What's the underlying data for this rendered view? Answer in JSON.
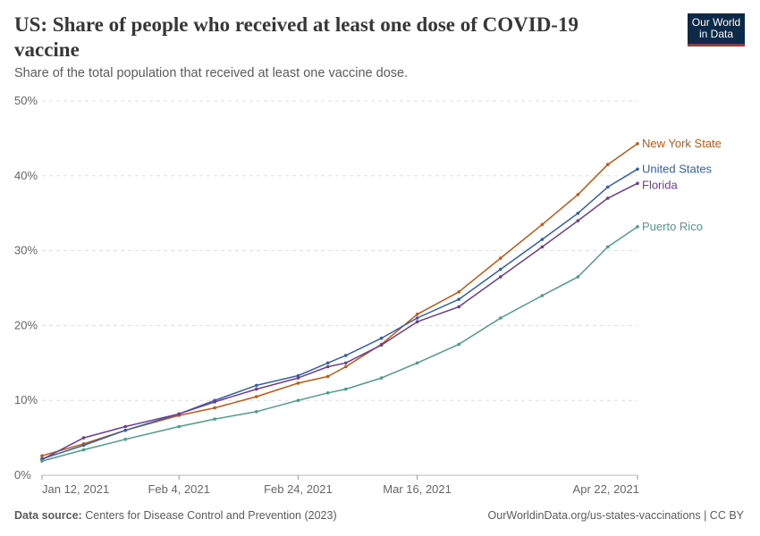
{
  "header": {
    "title": "US: Share of people who received at least one dose of COVID-19 vaccine",
    "subtitle": "Share of the total population that received at least one vaccine dose."
  },
  "logo": {
    "line1": "Our World",
    "line2": "in Data"
  },
  "footer": {
    "source_label": "Data source:",
    "source_text": "Centers for Disease Control and Prevention (2023)",
    "url_license": "OurWorldinData.org/us-states-vaccinations | CC BY"
  },
  "chart_data": {
    "type": "line",
    "x_start": "2021-01-12",
    "x_end": "2021-04-22",
    "ylim": [
      0,
      50
    ],
    "y_ticks": [
      {
        "value": 0,
        "label": "0%"
      },
      {
        "value": 10,
        "label": "10%"
      },
      {
        "value": 20,
        "label": "20%"
      },
      {
        "value": 30,
        "label": "30%"
      },
      {
        "value": 40,
        "label": "40%"
      },
      {
        "value": 50,
        "label": "50%"
      }
    ],
    "x_ticks": [
      {
        "date": "2021-01-12",
        "label": "Jan 12, 2021"
      },
      {
        "date": "2021-02-04",
        "label": "Feb 4, 2021"
      },
      {
        "date": "2021-02-24",
        "label": "Feb 24, 2021"
      },
      {
        "date": "2021-03-16",
        "label": "Mar 16, 2021"
      },
      {
        "date": "2021-04-22",
        "label": "Apr 22, 2021"
      }
    ],
    "grid": "horizontal dashed",
    "legend": "inline labels at right end of lines",
    "series": [
      {
        "name": "New York State",
        "color": "#c05917",
        "points": [
          [
            "2021-01-12",
            2.6
          ],
          [
            "2021-01-19",
            4.2
          ],
          [
            "2021-01-26",
            6.0
          ],
          [
            "2021-02-04",
            8.0
          ],
          [
            "2021-02-10",
            9.0
          ],
          [
            "2021-02-17",
            10.5
          ],
          [
            "2021-02-24",
            12.3
          ],
          [
            "2021-03-01",
            13.2
          ],
          [
            "2021-03-04",
            14.5
          ],
          [
            "2021-03-10",
            17.5
          ],
          [
            "2021-03-16",
            21.5
          ],
          [
            "2021-03-23",
            24.5
          ],
          [
            "2021-03-30",
            29.0
          ],
          [
            "2021-04-06",
            33.5
          ],
          [
            "2021-04-12",
            37.5
          ],
          [
            "2021-04-17",
            41.5
          ],
          [
            "2021-04-22",
            44.3
          ]
        ]
      },
      {
        "name": "United States",
        "color": "#3360a9",
        "points": [
          [
            "2021-01-12",
            2.2
          ],
          [
            "2021-01-19",
            4.0
          ],
          [
            "2021-01-26",
            6.0
          ],
          [
            "2021-02-04",
            8.2
          ],
          [
            "2021-02-10",
            10.0
          ],
          [
            "2021-02-17",
            12.0
          ],
          [
            "2021-02-24",
            13.3
          ],
          [
            "2021-03-01",
            15.0
          ],
          [
            "2021-03-04",
            16.0
          ],
          [
            "2021-03-10",
            18.3
          ],
          [
            "2021-03-16",
            21.0
          ],
          [
            "2021-03-23",
            23.5
          ],
          [
            "2021-03-30",
            27.5
          ],
          [
            "2021-04-06",
            31.5
          ],
          [
            "2021-04-12",
            35.0
          ],
          [
            "2021-04-17",
            38.5
          ],
          [
            "2021-04-22",
            40.9
          ]
        ]
      },
      {
        "name": "Florida",
        "color": "#6d3e91",
        "points": [
          [
            "2021-01-12",
            2.1
          ],
          [
            "2021-01-19",
            5.0
          ],
          [
            "2021-01-26",
            6.5
          ],
          [
            "2021-02-04",
            8.2
          ],
          [
            "2021-02-10",
            9.8
          ],
          [
            "2021-02-17",
            11.5
          ],
          [
            "2021-02-24",
            13.0
          ],
          [
            "2021-03-01",
            14.5
          ],
          [
            "2021-03-04",
            15.0
          ],
          [
            "2021-03-10",
            17.4
          ],
          [
            "2021-03-16",
            20.5
          ],
          [
            "2021-03-23",
            22.5
          ],
          [
            "2021-03-30",
            26.5
          ],
          [
            "2021-04-06",
            30.5
          ],
          [
            "2021-04-12",
            34.0
          ],
          [
            "2021-04-17",
            37.0
          ],
          [
            "2021-04-22",
            39.0
          ]
        ]
      },
      {
        "name": "Puerto Rico",
        "color": "#4c9d84",
        "points": [
          [
            "2021-01-12",
            1.9
          ],
          [
            "2021-01-19",
            3.4
          ],
          [
            "2021-01-26",
            4.8
          ],
          [
            "2021-02-04",
            6.5
          ],
          [
            "2021-02-10",
            7.5
          ],
          [
            "2021-02-17",
            8.5
          ],
          [
            "2021-02-24",
            10.0
          ],
          [
            "2021-03-01",
            11.0
          ],
          [
            "2021-03-04",
            11.5
          ],
          [
            "2021-03-10",
            13.0
          ],
          [
            "2021-03-16",
            15.0
          ],
          [
            "2021-03-23",
            17.5
          ],
          [
            "2021-03-30",
            21.0
          ],
          [
            "2021-04-06",
            24.0
          ],
          [
            "2021-04-12",
            26.5
          ],
          [
            "2021-04-17",
            30.5
          ],
          [
            "2021-04-22",
            33.2
          ]
        ]
      }
    ]
  }
}
